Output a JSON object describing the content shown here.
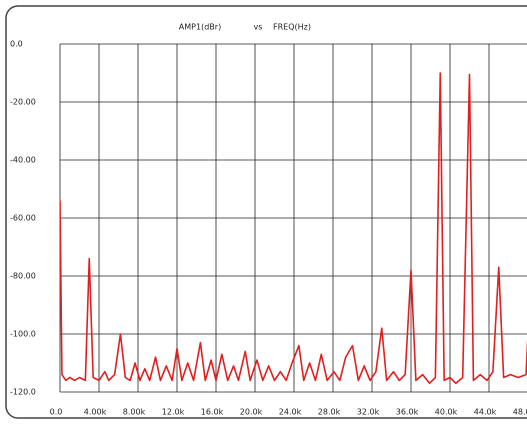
{
  "chart_data": {
    "type": "line",
    "ylabel": "AMP1(dBr)",
    "connector": "vs",
    "xlabel": "FREQ(Hz)",
    "x": [
      0,
      200,
      600,
      1000,
      1500,
      2000,
      2600,
      3000,
      3400,
      4000,
      4600,
      5000,
      5600,
      6200,
      6700,
      7200,
      7700,
      8200,
      8700,
      9200,
      9800,
      10300,
      10900,
      11500,
      12000,
      12500,
      13100,
      13700,
      14400,
      14900,
      15500,
      16000,
      16600,
      17200,
      17800,
      18300,
      19000,
      19500,
      20200,
      20800,
      21400,
      22000,
      22600,
      23200,
      23800,
      24500,
      25000,
      25600,
      26200,
      26800,
      27400,
      28100,
      28700,
      29300,
      30000,
      30600,
      31200,
      31800,
      32400,
      33000,
      33500,
      34200,
      34800,
      35400,
      36000,
      36500,
      37200,
      37900,
      38500,
      39000,
      39400,
      40000,
      40600,
      41300,
      42000,
      42400,
      43100,
      43800,
      44400,
      45000,
      45500,
      46200,
      47000,
      47800,
      48000
    ],
    "series": [
      {
        "name": "AMP1(dBr)",
        "color": "#e02020",
        "values": [
          -54,
          -114,
          -116,
          -115,
          -116,
          -115,
          -116,
          -74,
          -115,
          -116,
          -113,
          -116,
          -114,
          -100,
          -115,
          -116,
          -110,
          -116,
          -112,
          -116,
          -108,
          -116,
          -111,
          -116,
          -105,
          -116,
          -110,
          -116,
          -103,
          -116,
          -109,
          -116,
          -107,
          -116,
          -111,
          -116,
          -106,
          -116,
          -109,
          -116,
          -111,
          -116,
          -113,
          -116,
          -110,
          -104,
          -116,
          -110,
          -116,
          -107,
          -116,
          -113,
          -116,
          -108,
          -104,
          -116,
          -111,
          -116,
          -113,
          -98,
          -116,
          -113,
          -116,
          -114,
          -78,
          -116,
          -114,
          -117,
          -115,
          -10,
          -116,
          -115,
          -117,
          -115,
          -10.5,
          -116,
          -114,
          -116,
          -113,
          -77,
          -115,
          -114,
          -115,
          -114,
          -100
        ]
      }
    ],
    "xlim": [
      0,
      48000
    ],
    "xticks": [
      {
        "value": 0,
        "label": "0.0"
      },
      {
        "value": 4000,
        "label": "4.00k"
      },
      {
        "value": 8000,
        "label": "8.00k"
      },
      {
        "value": 12000,
        "label": "12.0k"
      },
      {
        "value": 16000,
        "label": "16.0k"
      },
      {
        "value": 20000,
        "label": "20.0k"
      },
      {
        "value": 24000,
        "label": "24.0k"
      },
      {
        "value": 28000,
        "label": "28.0k"
      },
      {
        "value": 32000,
        "label": "32.0k"
      },
      {
        "value": 36000,
        "label": "36.0k"
      },
      {
        "value": 40000,
        "label": "40.0k"
      },
      {
        "value": 44000,
        "label": "44.0k"
      },
      {
        "value": 48000,
        "label": "48.0k"
      }
    ],
    "ylim": [
      -120,
      0
    ],
    "yticks": [
      {
        "value": 0,
        "label": "0.0"
      },
      {
        "value": -20,
        "label": "-20.00"
      },
      {
        "value": -40,
        "label": "-40.00"
      },
      {
        "value": -60,
        "label": "-60.00"
      },
      {
        "value": -80,
        "label": "-80.00"
      },
      {
        "value": -100,
        "label": "-100.0"
      },
      {
        "value": -120,
        "label": "-120.0"
      }
    ],
    "grid": true
  }
}
